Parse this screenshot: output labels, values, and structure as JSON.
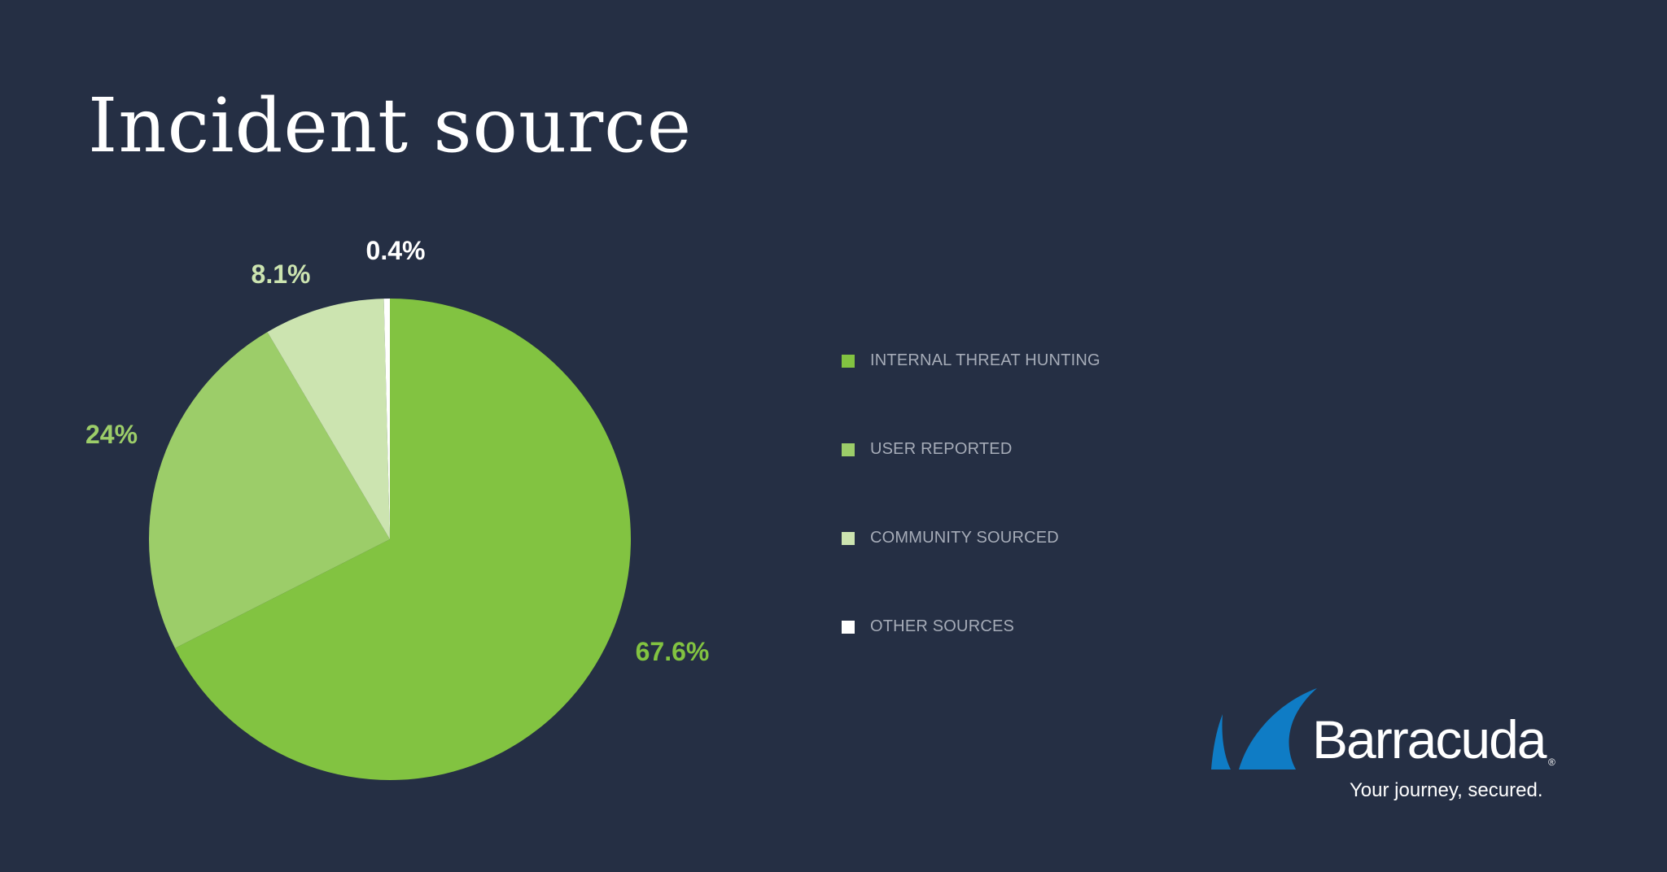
{
  "chart_data": {
    "type": "pie",
    "title": "Incident source",
    "slices": [
      {
        "name": "INTERNAL THREAT HUNTING",
        "value": 67.6,
        "label": "67.6%",
        "color": "#82c341",
        "label_color": "#82c341"
      },
      {
        "name": "USER REPORTED",
        "value": 24,
        "label": "24%",
        "color": "#9ccd69",
        "label_color": "#9ccd69"
      },
      {
        "name": "COMMUNITY SOURCED",
        "value": 8.1,
        "label": "8.1%",
        "color": "#cce4b0",
        "label_color": "#cce4b0"
      },
      {
        "name": "OTHER SOURCES",
        "value": 0.4,
        "label": "0.4%",
        "color": "#ffffff",
        "label_color": "#ffffff"
      }
    ],
    "legend_position": "right"
  },
  "logo": {
    "brand": "Barracuda",
    "registered": "®",
    "tagline": "Your journey, secured.",
    "colors": {
      "fin": "#0f7cc5",
      "text": "#ffffff"
    }
  },
  "colors": {
    "background": "#252f44",
    "legend_text": "#a6acb8"
  }
}
